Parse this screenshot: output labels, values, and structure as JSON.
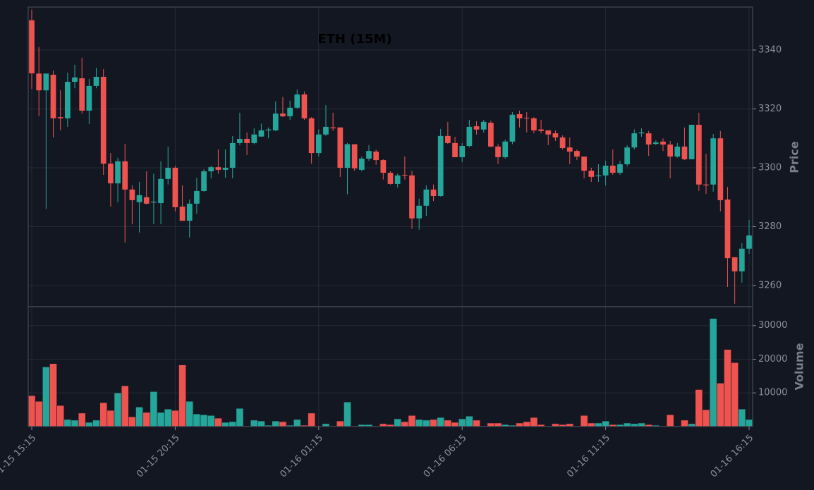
{
  "chart_data": {
    "type": "candlestick",
    "title": "ETH (15M)",
    "ylabel": "Price",
    "volume_ylabel": "Volume",
    "up_color": "#26a69a",
    "down_color": "#ef5350",
    "grid": true,
    "ylim": [
      3252.8,
      3354.6
    ],
    "yticks": [
      3260,
      3280,
      3300,
      3320,
      3340
    ],
    "volume_ylim": [
      0,
      35600
    ],
    "volume_yticks": [
      10000,
      20000,
      30000
    ],
    "x": [
      "01-15 15:15",
      "01-15 15:30",
      "01-15 15:45",
      "01-15 16:00",
      "01-15 16:15",
      "01-15 16:30",
      "01-15 16:45",
      "01-15 17:00",
      "01-15 17:15",
      "01-15 17:30",
      "01-15 17:45",
      "01-15 18:00",
      "01-15 18:15",
      "01-15 18:30",
      "01-15 18:45",
      "01-15 19:00",
      "01-15 19:15",
      "01-15 19:30",
      "01-15 19:45",
      "01-15 20:00",
      "01-15 20:15",
      "01-15 20:30",
      "01-15 20:45",
      "01-15 21:00",
      "01-15 21:15",
      "01-15 21:30",
      "01-15 21:45",
      "01-15 22:00",
      "01-15 22:15",
      "01-15 22:30",
      "01-15 22:45",
      "01-15 23:00",
      "01-15 23:15",
      "01-15 23:30",
      "01-15 23:45",
      "01-16 00:00",
      "01-16 00:15",
      "01-16 00:30",
      "01-16 00:45",
      "01-16 01:00",
      "01-16 01:15",
      "01-16 01:30",
      "01-16 01:45",
      "01-16 02:00",
      "01-16 02:15",
      "01-16 02:30",
      "01-16 02:45",
      "01-16 03:00",
      "01-16 03:15",
      "01-16 03:30",
      "01-16 03:45",
      "01-16 04:00",
      "01-16 04:15",
      "01-16 04:30",
      "01-16 04:45",
      "01-16 05:00",
      "01-16 05:15",
      "01-16 05:30",
      "01-16 05:45",
      "01-16 06:00",
      "01-16 06:15",
      "01-16 06:30",
      "01-16 06:45",
      "01-16 07:00",
      "01-16 07:15",
      "01-16 07:30",
      "01-16 07:45",
      "01-16 08:00",
      "01-16 08:15",
      "01-16 08:30",
      "01-16 08:45",
      "01-16 09:00",
      "01-16 09:15",
      "01-16 09:30",
      "01-16 09:45",
      "01-16 10:00",
      "01-16 10:15",
      "01-16 10:30",
      "01-16 10:45",
      "01-16 11:00",
      "01-16 11:15",
      "01-16 11:30",
      "01-16 11:45",
      "01-16 12:00",
      "01-16 12:15",
      "01-16 12:30",
      "01-16 12:45",
      "01-16 13:00",
      "01-16 13:15",
      "01-16 13:30",
      "01-16 13:45",
      "01-16 14:00",
      "01-16 14:15",
      "01-16 14:30",
      "01-16 14:45",
      "01-16 15:00",
      "01-16 15:15",
      "01-16 15:30",
      "01-16 15:45",
      "01-16 16:00",
      "01-16 16:15"
    ],
    "open": [
      3350.1,
      3332.0,
      3326.3,
      3331.6,
      3317.2,
      3316.8,
      3329.2,
      3330.4,
      3319.4,
      3327.8,
      3330.9,
      3301.4,
      3294.7,
      3302.2,
      3292.6,
      3288.3,
      3290.0,
      3288.2,
      3288.0,
      3296.2,
      3300.0,
      3286.8,
      3282.0,
      3287.8,
      3292.1,
      3298.8,
      3300.2,
      3299.3,
      3300.0,
      3308.4,
      3309.8,
      3308.4,
      3310.6,
      3312.7,
      3312.7,
      3318.4,
      3317.5,
      3320.4,
      3324.9,
      3316.8,
      3305.0,
      3311.3,
      3313.7,
      3313.7,
      3300.0,
      3308.0,
      3299.3,
      3303.1,
      3305.5,
      3302.6,
      3298.3,
      3294.5,
      3297.6,
      3297.4,
      3282.8,
      3287.1,
      3292.6,
      3290.4,
      3310.8,
      3308.4,
      3303.6,
      3307.4,
      3314.1,
      3313.0,
      3315.3,
      3307.2,
      3303.6,
      3308.9,
      3318.2,
      3317.0,
      3316.8,
      3313.0,
      3312.7,
      3311.7,
      3310.3,
      3306.9,
      3305.7,
      3303.8,
      3299.0,
      3297.1,
      3297.4,
      3300.7,
      3298.3,
      3301.2,
      3306.9,
      3311.7,
      3311.7,
      3308.1,
      3308.9,
      3307.9,
      3303.8,
      3307.2,
      3302.9,
      3314.6,
      3294.3,
      3294.3,
      3310.0,
      3289.2,
      3269.6,
      3264.8,
      3272.5
    ],
    "high": [
      3353.7,
      3341.0,
      3332.0,
      3333.0,
      3326.3,
      3332.3,
      3335.0,
      3337.4,
      3330.2,
      3334.0,
      3333.5,
      3305.0,
      3303.4,
      3308.1,
      3294.0,
      3295.2,
      3298.8,
      3298.0,
      3302.2,
      3307.2,
      3300.7,
      3294.0,
      3289.2,
      3296.6,
      3299.5,
      3300.7,
      3306.2,
      3306.2,
      3310.8,
      3318.7,
      3312.0,
      3313.4,
      3315.0,
      3313.7,
      3322.5,
      3324.0,
      3322.8,
      3326.6,
      3325.9,
      3317.2,
      3313.0,
      3321.3,
      3318.7,
      3313.7,
      3308.4,
      3308.0,
      3303.8,
      3307.7,
      3306.2,
      3302.9,
      3298.8,
      3298.0,
      3303.8,
      3299.0,
      3289.5,
      3294.0,
      3294.3,
      3313.2,
      3315.6,
      3310.5,
      3308.4,
      3316.3,
      3315.8,
      3316.3,
      3316.0,
      3308.0,
      3309.6,
      3318.9,
      3319.4,
      3318.9,
      3317.2,
      3316.3,
      3312.7,
      3312.7,
      3311.0,
      3310.3,
      3306.2,
      3303.8,
      3300.0,
      3301.2,
      3302.4,
      3306.2,
      3302.4,
      3307.7,
      3313.0,
      3313.4,
      3312.5,
      3309.3,
      3310.0,
      3309.1,
      3308.4,
      3313.7,
      3314.6,
      3318.7,
      3304.8,
      3311.5,
      3312.5,
      3293.5,
      3269.3,
      3274.4,
      3282.3
    ],
    "low": [
      3326.8,
      3317.5,
      3286.0,
      3310.3,
      3312.7,
      3313.9,
      3327.0,
      3318.4,
      3314.9,
      3327.0,
      3297.6,
      3286.8,
      3288.3,
      3274.6,
      3280.8,
      3278.0,
      3287.5,
      3280.8,
      3280.8,
      3294.3,
      3285.2,
      3282.0,
      3276.3,
      3284.4,
      3291.9,
      3296.4,
      3298.0,
      3296.6,
      3296.4,
      3307.7,
      3304.3,
      3308.0,
      3310.5,
      3310.0,
      3312.5,
      3317.2,
      3316.3,
      3320.1,
      3316.3,
      3301.4,
      3303.8,
      3310.8,
      3312.5,
      3296.9,
      3291.0,
      3299.0,
      3298.8,
      3302.4,
      3301.0,
      3296.0,
      3294.3,
      3293.3,
      3296.0,
      3279.2,
      3279.0,
      3283.7,
      3288.7,
      3290.2,
      3308.1,
      3303.6,
      3301.9,
      3307.0,
      3311.3,
      3312.0,
      3307.0,
      3301.2,
      3303.1,
      3308.0,
      3313.7,
      3312.0,
      3311.7,
      3311.7,
      3307.7,
      3309.1,
      3306.2,
      3301.2,
      3302.6,
      3296.4,
      3295.2,
      3295.2,
      3294.0,
      3297.6,
      3297.6,
      3300.5,
      3306.2,
      3310.5,
      3304.0,
      3307.7,
      3305.7,
      3296.4,
      3303.4,
      3302.6,
      3302.9,
      3292.1,
      3291.1,
      3291.9,
      3285.2,
      3259.5,
      3253.8,
      3261.0,
      3270.8
    ],
    "close": [
      3332.1,
      3326.3,
      3332.0,
      3316.8,
      3316.8,
      3329.2,
      3330.7,
      3319.4,
      3327.8,
      3330.9,
      3301.4,
      3294.7,
      3302.2,
      3292.6,
      3289.0,
      3290.7,
      3287.8,
      3288.5,
      3296.2,
      3300.0,
      3286.6,
      3282.0,
      3287.8,
      3292.1,
      3298.8,
      3300.2,
      3299.3,
      3300.0,
      3308.4,
      3309.8,
      3308.4,
      3311.3,
      3312.7,
      3313.0,
      3318.4,
      3317.5,
      3320.4,
      3324.9,
      3316.8,
      3305.0,
      3311.3,
      3313.9,
      3313.4,
      3300.0,
      3308.0,
      3299.8,
      3303.1,
      3305.7,
      3302.6,
      3298.3,
      3294.5,
      3297.4,
      3297.4,
      3282.8,
      3287.1,
      3292.6,
      3290.4,
      3310.8,
      3308.4,
      3303.6,
      3307.4,
      3313.9,
      3313.0,
      3315.6,
      3307.2,
      3303.6,
      3308.9,
      3318.0,
      3316.8,
      3316.8,
      3312.7,
      3312.5,
      3311.3,
      3310.3,
      3306.7,
      3305.5,
      3303.8,
      3299.0,
      3296.9,
      3297.4,
      3300.7,
      3298.3,
      3301.2,
      3306.9,
      3311.7,
      3312.0,
      3307.9,
      3308.6,
      3307.9,
      3303.8,
      3307.2,
      3302.9,
      3314.6,
      3294.3,
      3294.0,
      3310.0,
      3289.0,
      3269.3,
      3264.8,
      3272.5,
      3277.0
    ],
    "volume": [
      9200,
      7500,
      17700,
      18700,
      6250,
      2100,
      1900,
      4000,
      1250,
      1900,
      7100,
      4800,
      10000,
      12100,
      2900,
      5800,
      4200,
      10400,
      4200,
      5200,
      4800,
      18300,
      7500,
      3750,
      3500,
      3300,
      2500,
      1250,
      1450,
      5400,
      200,
      1900,
      1650,
      400,
      1650,
      1450,
      400,
      2100,
      400,
      4000,
      200,
      850,
      200,
      1650,
      7300,
      200,
      600,
      600,
      200,
      850,
      600,
      2300,
      1450,
      3300,
      2100,
      1900,
      2100,
      2700,
      1900,
      1250,
      2300,
      3100,
      1900,
      200,
      1050,
      1050,
      600,
      400,
      1050,
      1450,
      2700,
      600,
      200,
      850,
      600,
      850,
      200,
      3300,
      1050,
      1050,
      1650,
      600,
      600,
      1050,
      850,
      1050,
      600,
      400,
      200,
      3500,
      200,
      1900,
      850,
      11000,
      5000,
      32100,
      12900,
      22900,
      19000,
      5200,
      2100
    ]
  }
}
